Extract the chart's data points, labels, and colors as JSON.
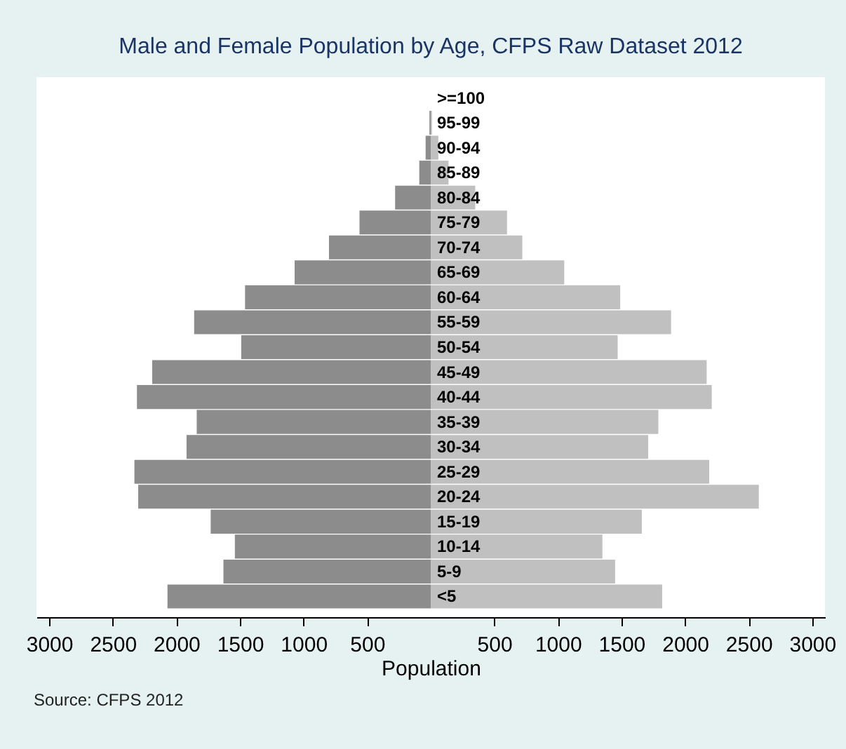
{
  "chart_data": {
    "type": "bar",
    "orientation": "horizontal",
    "stacked": true,
    "title": "Male and Female Population by Age, CFPS Raw Dataset 2012",
    "xlabel": "Population",
    "annotations": [
      "Source: CFPS 2012"
    ],
    "categories": [
      ">=100",
      "95-99",
      "90-94",
      "85-89",
      "80-84",
      "75-79",
      "70-74",
      "65-69",
      "60-64",
      "55-59",
      "50-54",
      "45-49",
      "40-44",
      "35-39",
      "30-34",
      "25-29",
      "20-24",
      "15-19",
      "10-14",
      "5-9",
      "<5"
    ],
    "series": [
      {
        "color": "#8c8c8c",
        "values": [
          0,
          -10,
          -40,
          -90,
          -280,
          -560,
          -800,
          -1070,
          -1460,
          -1860,
          -1490,
          -2190,
          -2310,
          -1840,
          -1920,
          -2330,
          -2300,
          -1730,
          -1540,
          -1630,
          -2070
        ]
      },
      {
        "color": "#c0c0c0",
        "values": [
          0,
          10,
          60,
          140,
          350,
          600,
          720,
          1050,
          1490,
          1890,
          1470,
          2170,
          2210,
          1790,
          1710,
          2190,
          2580,
          1660,
          1350,
          1450,
          1820
        ]
      }
    ],
    "xlim": [
      -3100,
      3100
    ],
    "xticks": [
      {
        "value": -3000,
        "label": "3000"
      },
      {
        "value": -2500,
        "label": "2500"
      },
      {
        "value": -2000,
        "label": "2000"
      },
      {
        "value": -1500,
        "label": "1500"
      },
      {
        "value": -1000,
        "label": "1000"
      },
      {
        "value": -500,
        "label": "500"
      },
      500,
      1000,
      1500,
      2000,
      2500,
      3000
    ],
    "grid": false,
    "legend": false
  }
}
